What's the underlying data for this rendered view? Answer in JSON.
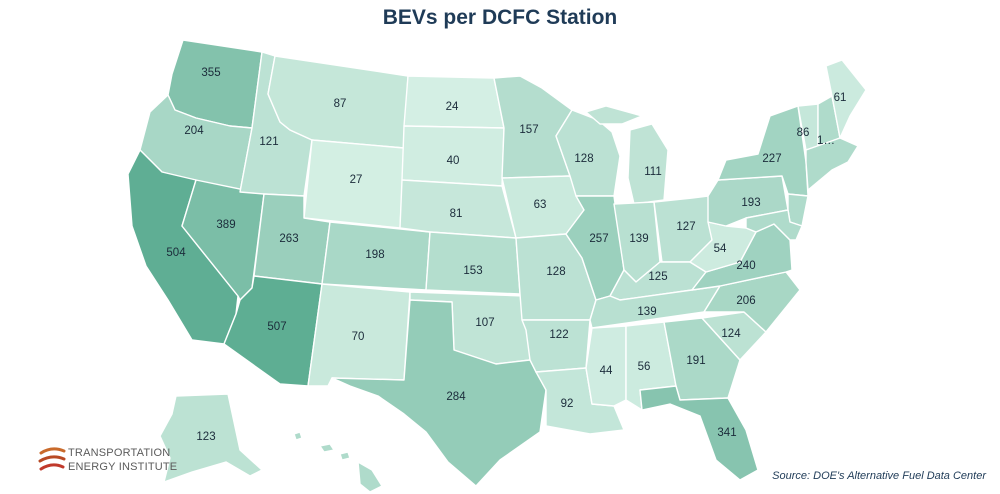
{
  "title": "BEVs per DCFC Station",
  "source": "Source:  DOE's Alternative Fuel Data Center",
  "logo": {
    "line1": "TRANSPORTATION",
    "line2": "ENERGY INSTITUTE"
  },
  "colors": {
    "low": "#d4efe4",
    "high": "#5eae93",
    "border": "#ffffff",
    "title": "#1f3b57"
  },
  "states": {
    "WA": 355,
    "OR": 204,
    "CA": 504,
    "NV": 389,
    "ID": 121,
    "MT": 87,
    "WY": 27,
    "UT": 263,
    "AZ": 507,
    "CO": 198,
    "NM": 70,
    "ND": 24,
    "SD": 40,
    "NE": 81,
    "KS": 153,
    "OK": 107,
    "TX": 284,
    "MN": 157,
    "IA": 63,
    "MO": 128,
    "AR": 122,
    "LA": 92,
    "WI": 128,
    "IL": 257,
    "MI": 111,
    "IN": 139,
    "OH": 127,
    "KY": 125,
    "TN": 139,
    "MS": 44,
    "AL": 56,
    "GA": 191,
    "FL": 341,
    "SC": 124,
    "NC": 206,
    "VA": 240,
    "WV": 54,
    "PA": 193,
    "NY": 227,
    "VT": 86,
    "NH": "1…",
    "ME": 61,
    "AK": 123
  }
}
